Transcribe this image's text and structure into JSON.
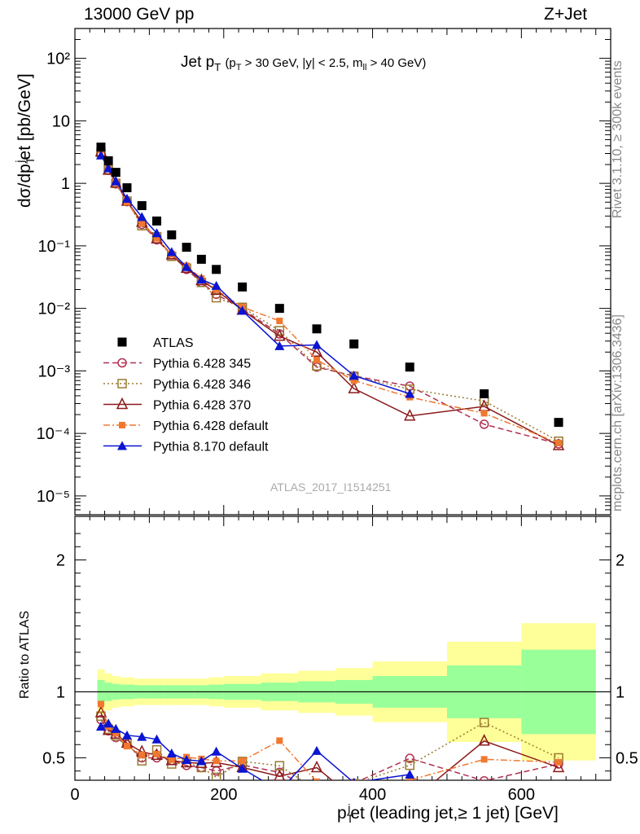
{
  "header": {
    "left": "13000 GeV pp",
    "right": "Z+Jet"
  },
  "side": {
    "rivet": "Rivet 3.1.10, ≥ 300k events",
    "mcplots": "mcplots.cern.ch [arXiv:1306.3436]"
  },
  "plot_title": {
    "main": "Jet p",
    "main_sub": "T",
    "cuts": "(p",
    "cuts_sub1": "T",
    "cuts_mid": " > 30 GeV, |y| < 2.5, m",
    "cuts_sub2": "ll",
    "cuts_end": " > 40 GeV)"
  },
  "analysis_id": "ATLAS_2017_I1514251",
  "y_label_main": "dσ/dp",
  "y_label_sub": "T",
  "y_label_sup": "j",
  "y_label_tail": "et [pb/GeV]",
  "y_label_ratio": "Ratio to ATLAS",
  "x_label_main": "p",
  "x_label_sub": "T",
  "x_label_sup": "j",
  "x_label_tail": "et (leading jet,≥ 1 jet) [GeV]",
  "chart_data": {
    "type": "line",
    "x_range": [
      0,
      720
    ],
    "x_ticks": [
      "0",
      "200",
      "400",
      "600"
    ],
    "y_scale": "log",
    "y_range": [
      5e-06,
      300
    ],
    "y_tick_labels": [
      "10⁻⁵",
      "10⁻⁴",
      "10⁻³",
      "10⁻²",
      "10⁻¹",
      "1",
      "10",
      "10²"
    ],
    "ratio_range": [
      0.33,
      2.33
    ],
    "ratio_ticks": [
      "0.5",
      "1",
      "2"
    ],
    "legend_position": "left-middle",
    "bins": [
      [
        30,
        40
      ],
      [
        40,
        50
      ],
      [
        50,
        60
      ],
      [
        60,
        80
      ],
      [
        80,
        100
      ],
      [
        100,
        120
      ],
      [
        120,
        140
      ],
      [
        140,
        160
      ],
      [
        160,
        180
      ],
      [
        180,
        200
      ],
      [
        200,
        250
      ],
      [
        250,
        300
      ],
      [
        300,
        350
      ],
      [
        350,
        400
      ],
      [
        400,
        500
      ],
      [
        500,
        600
      ],
      [
        600,
        700
      ]
    ],
    "x": [
      35,
      45,
      55,
      70,
      90,
      110,
      130,
      150,
      170,
      190,
      225,
      275,
      325,
      375,
      450,
      550,
      650
    ],
    "atlas": {
      "name": "ATLAS",
      "values": [
        3.8,
        2.3,
        1.5,
        0.85,
        0.44,
        0.25,
        0.15,
        0.095,
        0.061,
        0.042,
        0.022,
        0.01,
        0.0047,
        0.0027,
        0.00115,
        0.00043,
        0.00015
      ],
      "band_green": [
        0.09,
        0.07,
        0.06,
        0.055,
        0.05,
        0.05,
        0.05,
        0.05,
        0.05,
        0.055,
        0.06,
        0.07,
        0.08,
        0.09,
        0.12,
        0.2,
        0.32
      ],
      "band_yellow": [
        0.17,
        0.14,
        0.12,
        0.11,
        0.1,
        0.1,
        0.1,
        0.1,
        0.1,
        0.11,
        0.12,
        0.14,
        0.16,
        0.18,
        0.23,
        0.38,
        0.52
      ]
    },
    "series": [
      {
        "name": "Pythia 6.428 345",
        "color": "#b03050",
        "marker": "circle-open",
        "dash": "7,4",
        "values": [
          3.0,
          1.62,
          0.98,
          0.51,
          0.22,
          0.125,
          0.072,
          0.042,
          0.026,
          0.0168,
          0.0098,
          0.0039,
          0.00115,
          0.00083,
          0.00057,
          0.00014,
          6.8e-05
        ]
      },
      {
        "name": "Pythia 6.428 346",
        "color": "#9a7a30",
        "marker": "square-open",
        "dash": "2,3",
        "values": [
          3.1,
          1.65,
          1.0,
          0.52,
          0.21,
          0.14,
          0.068,
          0.044,
          0.026,
          0.0148,
          0.0104,
          0.0044,
          0.0012,
          0.00082,
          0.00051,
          0.00033,
          7.5e-05
        ]
      },
      {
        "name": "Pythia 6.428 370",
        "color": "#8b1a1a",
        "marker": "triangle-open",
        "dash": "",
        "values": [
          3.2,
          1.63,
          1.02,
          0.52,
          0.24,
          0.13,
          0.072,
          0.044,
          0.028,
          0.0195,
          0.0094,
          0.0036,
          0.002,
          0.00052,
          0.00019,
          0.00027,
          6.4e-05
        ]
      },
      {
        "name": "Pythia 6.428 default",
        "color": "#f07830",
        "marker": "square-filled",
        "dash": "8,3,2,3",
        "values": [
          3.45,
          1.69,
          1.03,
          0.5,
          0.23,
          0.132,
          0.073,
          0.048,
          0.03,
          0.02,
          0.0105,
          0.0063,
          0.0015,
          0.0007,
          0.00038,
          0.00021,
          7e-05
        ]
      },
      {
        "name": "Pythia 8.170 default",
        "color": "#0a14d2",
        "marker": "triangle-filled",
        "dash": "",
        "values": [
          2.8,
          1.75,
          1.08,
          0.57,
          0.29,
          0.16,
          0.08,
          0.046,
          0.029,
          0.023,
          0.0092,
          0.0025,
          0.0026,
          0.00084,
          0.00043,
          null,
          null
        ]
      }
    ]
  }
}
